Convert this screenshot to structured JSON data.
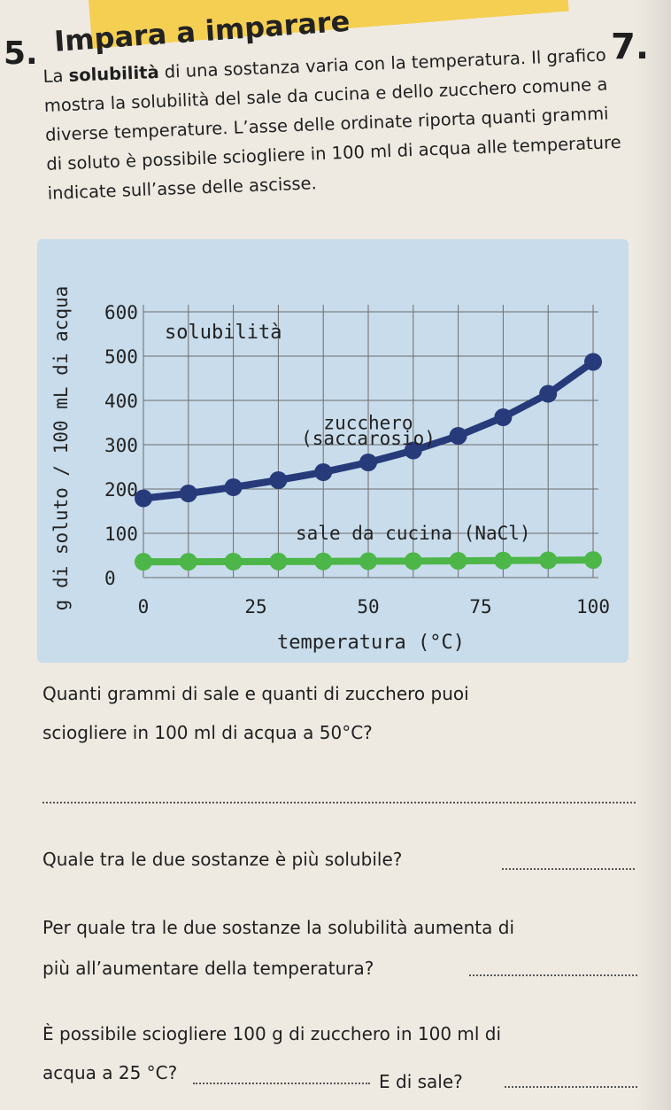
{
  "exercise": {
    "number": "5.",
    "title": "Impara a imparare",
    "page_number": "7."
  },
  "intro": {
    "bold_term": "solubilità",
    "text_before": "La ",
    "text_after": " di una sostanza varia con la temperatura. Il grafico mostra la solubilità del sale da cucina e dello zucchero comune a diverse temperature. L’asse delle ordinate riporta quanti grammi di soluto è possibile sciogliere in 100 ml di acqua alle temperature indicate sull’asse delle ascisse."
  },
  "chart_data": {
    "type": "line",
    "title": "solubilità",
    "xlabel": "temperatura (°C)",
    "ylabel": "g di soluto / 100 mL di acqua",
    "xlim": [
      0,
      100
    ],
    "ylim": [
      0,
      600
    ],
    "xticks": [
      0,
      25,
      50,
      75,
      100
    ],
    "yticks": [
      0,
      100,
      200,
      300,
      400,
      500,
      600
    ],
    "grid": true,
    "series": [
      {
        "name": "zucchero (saccarosio)",
        "color": "#273a7a",
        "x": [
          0,
          10,
          20,
          30,
          40,
          50,
          60,
          70,
          80,
          90,
          100
        ],
        "values": [
          179,
          190,
          204,
          220,
          238,
          260,
          287,
          320,
          362,
          415,
          487
        ]
      },
      {
        "name": "sale da cucina (NaCl)",
        "color": "#4cb648",
        "x": [
          0,
          10,
          20,
          30,
          40,
          50,
          60,
          70,
          80,
          90,
          100
        ],
        "values": [
          35.7,
          35.8,
          36.0,
          36.3,
          36.6,
          37.0,
          37.3,
          37.8,
          38.4,
          39.0,
          39.8
        ]
      }
    ]
  },
  "questions": {
    "q1_line1": "Quanti grammi di sale e quanti di zucchero puoi",
    "q1_line2": "sciogliere in 100 ml di acqua a 50°C?",
    "q2": "Quale tra le due sostanze è più solubile?",
    "q3_line1": "Per quale tra le due sostanze la solubilità aumenta di",
    "q3_line2": "più all’aumentare della temperatura?",
    "q4_line1": "È possibile sciogliere 100 g di zucchero in 100 ml di",
    "q4_line2": "acqua a 25 °C?",
    "q4_line3": "E di sale?"
  }
}
